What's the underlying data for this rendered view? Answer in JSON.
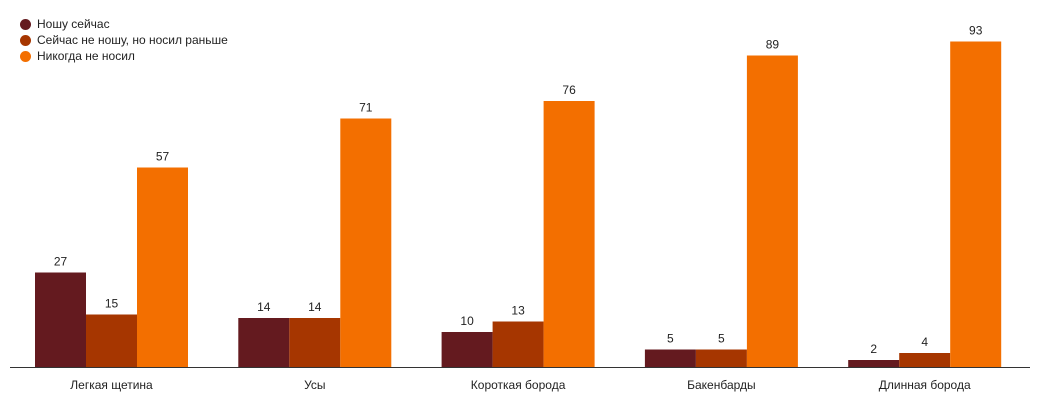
{
  "chart_data": {
    "type": "bar",
    "categories": [
      "Легкая щетина",
      "Усы",
      "Короткая борода",
      "Бакенбарды",
      "Длинная борода"
    ],
    "series": [
      {
        "name": "Ношу сейчас",
        "color": "#641a1f",
        "values": [
          27,
          14,
          10,
          5,
          2
        ]
      },
      {
        "name": "Сейчас не ношу, но носил раньше",
        "color": "#a63600",
        "values": [
          15,
          14,
          13,
          5,
          4
        ]
      },
      {
        "name": "Никогда не носил",
        "color": "#f36f00",
        "values": [
          57,
          71,
          76,
          89,
          93
        ]
      }
    ],
    "ylim": [
      0,
      100
    ],
    "grid": false,
    "legend": "top-left",
    "data_labels": true
  }
}
